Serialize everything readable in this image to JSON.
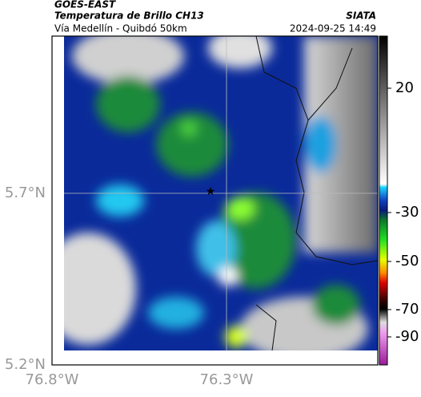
{
  "header": {
    "source": "GOES-EAST",
    "product": "Temperatura de Brillo CH13",
    "org": "SIATA",
    "route": "Vía Medellín - Quibdó 50km",
    "datetime": "2024-09-25 14:49"
  },
  "axes": {
    "lat_ticks": [
      "5.7°N",
      "5.2°N"
    ],
    "lon_ticks": [
      "76.8°W",
      "76.3°W"
    ]
  },
  "colorbar": {
    "ticks": [
      20,
      -30,
      -50,
      -70,
      -90
    ]
  }
}
